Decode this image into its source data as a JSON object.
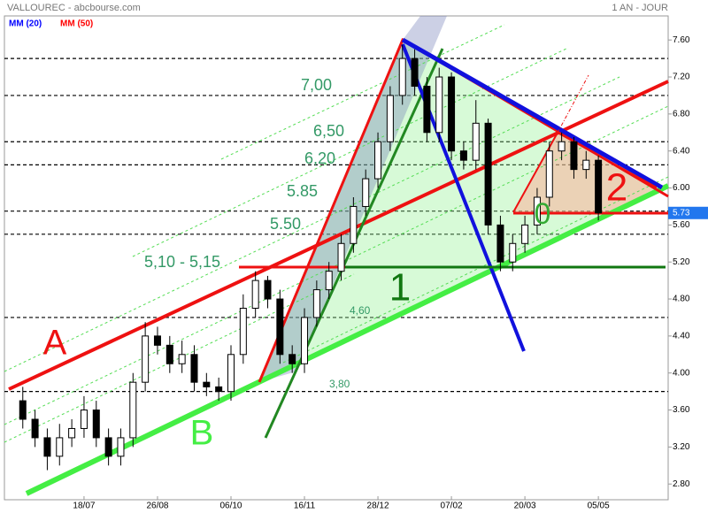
{
  "chart_data": {
    "type": "candlestick",
    "title": "VALLOUREC - abcbourse.com",
    "period": "1 AN - JOUR",
    "moving_averages": [
      {
        "name": "MM (20)",
        "color": "#0000ff"
      },
      {
        "name": "MM (50)",
        "color": "#ff0000"
      }
    ],
    "x": [
      0,
      1,
      2,
      3,
      4,
      5,
      6,
      7,
      8,
      9,
      10,
      11,
      12,
      13,
      14,
      15,
      16,
      17,
      18,
      19,
      20,
      21,
      22,
      23,
      24,
      25,
      26,
      27,
      28,
      29,
      30,
      31,
      32,
      33,
      34,
      35,
      36,
      37,
      38,
      39,
      40,
      41,
      42,
      43,
      44,
      45,
      46,
      47
    ],
    "open": [
      3.7,
      3.5,
      3.3,
      3.1,
      3.3,
      3.4,
      3.6,
      3.3,
      3.1,
      3.3,
      3.9,
      4.4,
      4.3,
      4.1,
      4.2,
      3.9,
      3.85,
      3.8,
      4.2,
      4.7,
      5.0,
      4.8,
      4.2,
      4.1,
      4.6,
      4.9,
      5.1,
      5.4,
      5.8,
      6.1,
      6.5,
      7.0,
      7.4,
      7.1,
      6.6,
      7.2,
      6.4,
      6.3,
      6.7,
      5.6,
      5.2,
      5.4,
      5.6,
      5.9,
      6.4,
      6.5,
      6.2,
      6.3
    ],
    "high": [
      3.85,
      3.6,
      3.4,
      3.45,
      3.5,
      3.75,
      3.7,
      3.4,
      3.4,
      4.0,
      4.55,
      4.5,
      4.4,
      4.35,
      4.3,
      4.0,
      3.95,
      4.3,
      4.85,
      5.1,
      5.05,
      4.9,
      4.3,
      4.7,
      5.0,
      5.2,
      5.5,
      5.9,
      6.2,
      6.6,
      7.1,
      7.55,
      7.5,
      7.2,
      7.3,
      7.25,
      6.5,
      6.95,
      6.75,
      5.7,
      5.5,
      5.7,
      6.0,
      6.5,
      6.6,
      6.55,
      6.4,
      6.35
    ],
    "low": [
      3.4,
      3.2,
      2.95,
      3.0,
      3.2,
      3.3,
      3.2,
      3.0,
      3.0,
      3.2,
      3.8,
      4.2,
      4.0,
      4.0,
      3.8,
      3.75,
      3.7,
      3.7,
      4.1,
      4.6,
      4.7,
      4.1,
      4.0,
      4.0,
      4.5,
      4.8,
      5.0,
      5.3,
      5.7,
      6.0,
      6.4,
      6.9,
      7.0,
      6.5,
      6.5,
      6.3,
      6.2,
      6.2,
      5.5,
      5.1,
      5.1,
      5.3,
      5.5,
      5.8,
      6.3,
      6.1,
      6.1,
      5.65
    ],
    "close": [
      3.5,
      3.3,
      3.1,
      3.3,
      3.4,
      3.6,
      3.3,
      3.1,
      3.3,
      3.9,
      4.4,
      4.3,
      4.1,
      4.2,
      3.9,
      3.85,
      3.8,
      4.2,
      4.7,
      5.0,
      4.8,
      4.2,
      4.1,
      4.6,
      4.9,
      5.1,
      5.4,
      5.8,
      6.1,
      6.5,
      7.0,
      7.4,
      7.1,
      6.6,
      7.2,
      6.4,
      6.3,
      6.7,
      5.6,
      5.2,
      5.4,
      5.6,
      5.9,
      6.4,
      6.5,
      6.2,
      6.3,
      5.73
    ],
    "xlim": [
      -1.5,
      52.7
    ],
    "xticks": [
      {
        "value": 5,
        "label": "18/07"
      },
      {
        "value": 11,
        "label": "26/08"
      },
      {
        "value": 17,
        "label": "06/10"
      },
      {
        "value": 23,
        "label": "16/11"
      },
      {
        "value": 29,
        "label": "28/12"
      },
      {
        "value": 35,
        "label": "07/02"
      },
      {
        "value": 41,
        "label": "20/03"
      },
      {
        "value": 47,
        "label": "05/05"
      }
    ],
    "ylim": [
      2.63,
      7.86
    ],
    "yticks": [
      {
        "value": 2.8,
        "label": "2.80"
      },
      {
        "value": 3.2,
        "label": "3.20"
      },
      {
        "value": 3.6,
        "label": "3.60"
      },
      {
        "value": 4.0,
        "label": "4.00"
      },
      {
        "value": 4.4,
        "label": "4.40"
      },
      {
        "value": 4.8,
        "label": "4.80"
      },
      {
        "value": 5.2,
        "label": "5.20"
      },
      {
        "value": 5.6,
        "label": "5.60"
      },
      {
        "value": 6.0,
        "label": "6.00"
      },
      {
        "value": 6.4,
        "label": "6.40"
      },
      {
        "value": 6.8,
        "label": "6.80"
      },
      {
        "value": 7.2,
        "label": "7.20"
      },
      {
        "value": 7.6,
        "label": "7.60"
      }
    ],
    "levels": [
      7.4,
      7.0,
      6.5,
      6.25,
      5.75,
      5.5,
      4.6,
      3.8
    ],
    "last_price": 5.73,
    "up_color": "#ffffff",
    "down_color": "#000000",
    "annotations": [
      {
        "text": "A"
      },
      {
        "text": "B"
      },
      {
        "text": "1"
      },
      {
        "text": "2"
      },
      {
        "text": "0"
      },
      {
        "text": "7,00"
      },
      {
        "text": "6,50"
      },
      {
        "text": "6,20"
      },
      {
        "text": "5.85"
      },
      {
        "text": "5.50"
      },
      {
        "text": "5,10 - 5,15"
      },
      {
        "text": "4,60"
      },
      {
        "text": "3,80"
      }
    ]
  }
}
